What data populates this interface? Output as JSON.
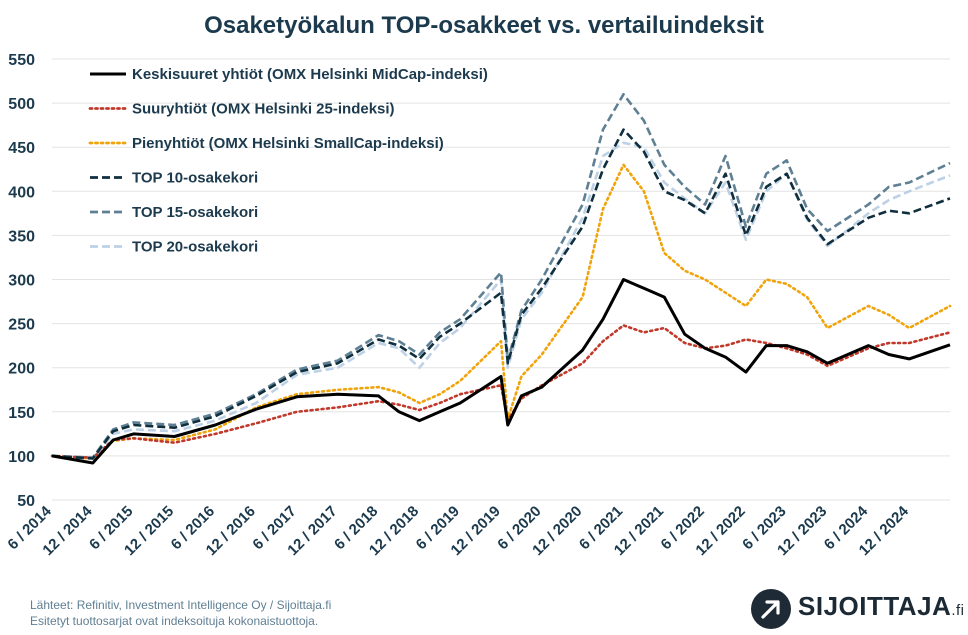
{
  "colors": {
    "title": "#1c3a4d",
    "grid": "#e3e3e3",
    "logo_circle": "#1e2a36"
  },
  "source_line_1": "Lähteet: Refinitiv, Investment Intelligence Oy / Sijoittaja.fi",
  "source_line_2": "Esitetyt tuottosarjat ovat indeksoituja kokonaistuottoja.",
  "logo": {
    "name": "SIJOITTAJA",
    "suffix": ".fi",
    "icon": "arrow-up-right-icon"
  },
  "chart_data": {
    "type": "line",
    "title": "Osaketyökalun TOP-osakkeet vs. vertailuindeksit",
    "xlabel": "",
    "ylabel": "",
    "ylim": [
      50,
      550
    ],
    "yticks": [
      50,
      100,
      150,
      200,
      250,
      300,
      350,
      400,
      450,
      500,
      550
    ],
    "xticks": [
      "6 / 2014",
      "12 / 2014",
      "6 / 2015",
      "12 / 2015",
      "6 / 2016",
      "12 / 2016",
      "6 / 2017",
      "12 / 2017",
      "6 / 2018",
      "12 / 2018",
      "6 / 2019",
      "12 / 2019",
      "6 / 2020",
      "12 / 2020",
      "6 / 2021",
      "12 / 2021",
      "6 / 2022",
      "12 / 2022",
      "6 / 2023",
      "12 / 2023",
      "6 / 2024",
      "12 / 2024"
    ],
    "xlim": [
      "6 / 2014",
      "6 / 2025"
    ],
    "grid": "horizontal",
    "legend_position": "top-left",
    "x": [
      "6/2014",
      "12/2014",
      "3/2015",
      "6/2015",
      "12/2015",
      "6/2016",
      "12/2016",
      "6/2017",
      "12/2017",
      "6/2018",
      "9/2018",
      "12/2018",
      "3/2019",
      "6/2019",
      "12/2019",
      "1/2020",
      "3/2020",
      "6/2020",
      "12/2020",
      "3/2021",
      "6/2021",
      "9/2021",
      "12/2021",
      "3/2022",
      "6/2022",
      "9/2022",
      "12/2022",
      "3/2023",
      "6/2023",
      "9/2023",
      "12/2023",
      "6/2024",
      "9/2024",
      "12/2024",
      "6/2025"
    ],
    "series": [
      {
        "name": "Keskisuuret yhtiöt (OMX Helsinki MidCap-indeksi)",
        "color": "#000000",
        "dash": "solid",
        "values": [
          100,
          92,
          118,
          125,
          122,
          135,
          153,
          167,
          170,
          168,
          150,
          140,
          150,
          160,
          190,
          135,
          168,
          178,
          220,
          255,
          300,
          290,
          280,
          238,
          222,
          212,
          195,
          225,
          225,
          218,
          205,
          225,
          215,
          210,
          226
        ]
      },
      {
        "name": "Suuryhtiöt (OMX Helsinki 25-indeksi)",
        "color": "#c0392b",
        "dash": "dotted",
        "values": [
          100,
          98,
          118,
          120,
          115,
          125,
          137,
          150,
          155,
          162,
          158,
          152,
          160,
          170,
          180,
          140,
          165,
          180,
          205,
          230,
          248,
          240,
          245,
          228,
          222,
          225,
          232,
          228,
          222,
          215,
          202,
          222,
          228,
          228,
          240
        ]
      },
      {
        "name": "Pienyhtiöt (OMX Helsinki SmallCap-indeksi)",
        "color": "#f0a30a",
        "dash": "dotted",
        "values": [
          100,
          97,
          117,
          120,
          118,
          130,
          155,
          170,
          175,
          178,
          172,
          160,
          170,
          185,
          230,
          142,
          190,
          215,
          280,
          380,
          430,
          400,
          330,
          310,
          300,
          285,
          270,
          300,
          295,
          280,
          245,
          270,
          260,
          245,
          270
        ]
      },
      {
        "name": "TOP 10-osakekori",
        "color": "#0f2f3e",
        "dash": "dashed",
        "values": [
          100,
          97,
          128,
          135,
          132,
          145,
          168,
          195,
          205,
          232,
          225,
          210,
          235,
          250,
          285,
          205,
          260,
          290,
          360,
          425,
          470,
          445,
          400,
          390,
          375,
          420,
          350,
          405,
          420,
          370,
          340,
          370,
          378,
          375,
          392
        ]
      },
      {
        "name": "TOP 15-osakekori",
        "color": "#5f8094",
        "dash": "dashed",
        "values": [
          100,
          98,
          130,
          138,
          135,
          148,
          170,
          198,
          208,
          237,
          230,
          215,
          240,
          255,
          308,
          208,
          265,
          300,
          385,
          470,
          510,
          480,
          430,
          405,
          385,
          440,
          360,
          420,
          435,
          380,
          355,
          385,
          405,
          410,
          432
        ]
      },
      {
        "name": "TOP 20-osakekori",
        "color": "#bdd1e6",
        "dash": "dashed",
        "values": [
          100,
          97,
          125,
          130,
          128,
          140,
          160,
          192,
          200,
          228,
          222,
          200,
          228,
          245,
          300,
          200,
          255,
          285,
          370,
          440,
          455,
          450,
          410,
          392,
          375,
          410,
          345,
          400,
          420,
          368,
          338,
          375,
          390,
          400,
          418
        ]
      }
    ]
  }
}
